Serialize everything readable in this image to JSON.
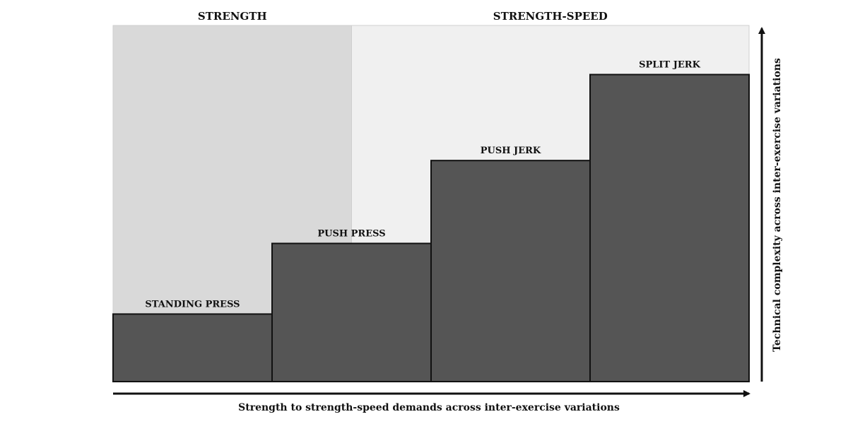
{
  "chart_data": {
    "type": "bar",
    "title": "",
    "categories": [
      "STANDING PRESS",
      "PUSH PRESS",
      "PUSH JERK",
      "SPLIT JERK"
    ],
    "values": [
      22,
      45,
      72,
      100
    ],
    "ylim": [
      0,
      116
    ],
    "xlabel": "Strength to strength-speed demands across inter-exercise variations",
    "ylabel": "Technical complexity across inter-exercise variations",
    "grid": false,
    "legend": "none",
    "bar_color": "#555555",
    "regions": [
      {
        "label": "STRENGTH",
        "start": 0,
        "end": 1.5,
        "color": "#d9d9d9"
      },
      {
        "label": "STRENGTH-SPEED",
        "start": 1.5,
        "end": 4,
        "color": "#f0f0f0"
      }
    ]
  }
}
